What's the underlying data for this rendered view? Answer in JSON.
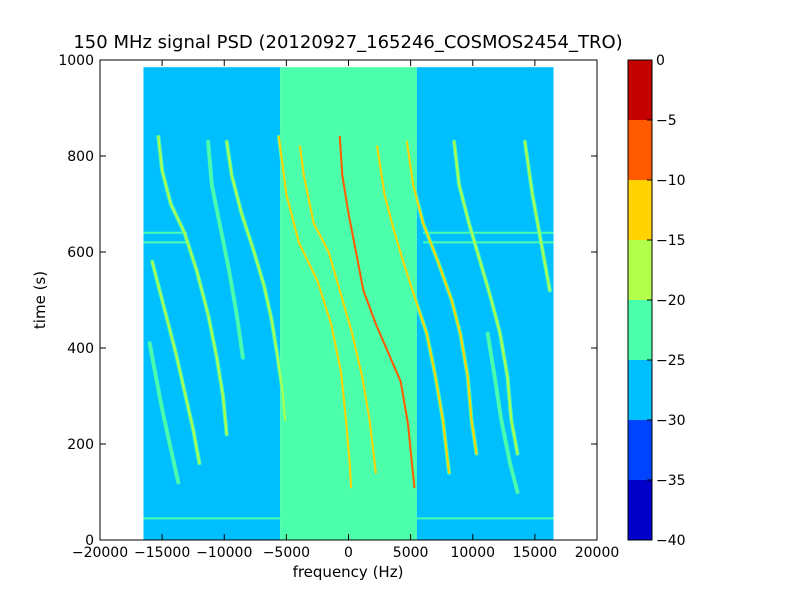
{
  "chart_data": {
    "type": "heatmap",
    "title": "150 MHz signal PSD (20120927_165246_COSMOS2454_TRO)",
    "xlabel": "frequency (Hz)",
    "ylabel": "time (s)",
    "xlim": [
      -20000,
      20000
    ],
    "ylim": [
      0,
      1000
    ],
    "x_ticks": [
      -20000,
      -15000,
      -10000,
      -5000,
      0,
      5000,
      10000,
      15000,
      20000
    ],
    "x_tick_labels": [
      "−20000",
      "−15000",
      "−10000",
      "−5000",
      "0",
      "5000",
      "10000",
      "15000",
      "20000"
    ],
    "y_ticks": [
      0,
      200,
      400,
      600,
      800,
      1000
    ],
    "y_tick_labels": [
      "0",
      "200",
      "400",
      "600",
      "800",
      "1000"
    ],
    "data_extent": {
      "x": [
        -16500,
        16500
      ],
      "y": [
        0,
        985
      ]
    },
    "background_bands": [
      {
        "x": [
          -16500,
          -5500
        ],
        "level": -27
      },
      {
        "x": [
          -5500,
          5500
        ],
        "level": -22
      },
      {
        "x": [
          5500,
          16500
        ],
        "level": -27
      }
    ],
    "horizontal_bands": [
      {
        "y": 640,
        "x": [
          -16500,
          -13000
        ],
        "level": -22
      },
      {
        "y": 620,
        "x": [
          -16500,
          -13000
        ],
        "level": -22
      },
      {
        "y": 640,
        "x": [
          6000,
          16500
        ],
        "level": -22
      },
      {
        "y": 620,
        "x": [
          6000,
          16500
        ],
        "level": -22
      },
      {
        "y": 45,
        "x": [
          -16500,
          16500
        ],
        "level": -22
      }
    ],
    "traces": [
      {
        "name": "",
        "level": -7,
        "points": [
          [
            -700,
            840
          ],
          [
            -500,
            760
          ],
          [
            0,
            680
          ],
          [
            600,
            600
          ],
          [
            1200,
            520
          ],
          [
            2200,
            450
          ],
          [
            3200,
            390
          ],
          [
            4200,
            330
          ],
          [
            4800,
            240
          ],
          [
            5100,
            160
          ],
          [
            5300,
            110
          ]
        ]
      },
      {
        "name": "",
        "level": -12,
        "points": [
          [
            -5600,
            840
          ],
          [
            -5000,
            720
          ],
          [
            -4000,
            620
          ],
          [
            -2500,
            540
          ],
          [
            -1400,
            450
          ],
          [
            -600,
            350
          ],
          [
            -200,
            250
          ],
          [
            100,
            160
          ],
          [
            200,
            110
          ]
        ]
      },
      {
        "name": "",
        "level": -12,
        "points": [
          [
            -3900,
            820
          ],
          [
            -3600,
            760
          ],
          [
            -2800,
            660
          ],
          [
            -1600,
            600
          ],
          [
            -700,
            520
          ],
          [
            300,
            430
          ],
          [
            1100,
            340
          ],
          [
            1700,
            250
          ],
          [
            2200,
            140
          ]
        ]
      },
      {
        "name": "",
        "level": -12,
        "points": [
          [
            2300,
            820
          ],
          [
            2900,
            720
          ],
          [
            3600,
            650
          ],
          [
            4400,
            580
          ],
          [
            5400,
            500
          ],
          [
            6300,
            430
          ],
          [
            7000,
            340
          ],
          [
            7600,
            250
          ],
          [
            8100,
            140
          ]
        ]
      },
      {
        "name": "",
        "level": -14,
        "points": [
          [
            4700,
            830
          ],
          [
            5200,
            740
          ],
          [
            6000,
            660
          ],
          [
            7200,
            580
          ],
          [
            8300,
            500
          ],
          [
            9000,
            430
          ],
          [
            9600,
            340
          ],
          [
            9900,
            250
          ],
          [
            10300,
            180
          ]
        ]
      },
      {
        "name": "",
        "level": -17,
        "points": [
          [
            8500,
            830
          ],
          [
            8900,
            740
          ],
          [
            9700,
            660
          ],
          [
            10600,
            580
          ],
          [
            11500,
            500
          ],
          [
            12200,
            430
          ],
          [
            12800,
            340
          ],
          [
            13100,
            250
          ],
          [
            13600,
            180
          ]
        ]
      },
      {
        "name": "",
        "level": -17,
        "points": [
          [
            14200,
            830
          ],
          [
            14800,
            720
          ],
          [
            15500,
            620
          ],
          [
            16200,
            520
          ]
        ]
      },
      {
        "name": "",
        "level": -20,
        "points": [
          [
            -15300,
            840
          ],
          [
            -15000,
            770
          ],
          [
            -14300,
            700
          ],
          [
            -13200,
            640
          ],
          [
            -12200,
            560
          ],
          [
            -11300,
            470
          ],
          [
            -10600,
            380
          ],
          [
            -10100,
            300
          ],
          [
            -9800,
            220
          ]
        ]
      },
      {
        "name": "",
        "level": -20,
        "points": [
          [
            -9800,
            830
          ],
          [
            -9400,
            760
          ],
          [
            -8600,
            680
          ],
          [
            -7600,
            600
          ],
          [
            -6800,
            530
          ],
          [
            -6200,
            460
          ],
          [
            -5700,
            380
          ],
          [
            -5300,
            310
          ],
          [
            -5100,
            250
          ]
        ]
      },
      {
        "name": "",
        "level": -20,
        "points": [
          [
            -15800,
            580
          ],
          [
            -15300,
            530
          ],
          [
            -14600,
            460
          ],
          [
            -13900,
            390
          ],
          [
            -13200,
            310
          ],
          [
            -12500,
            230
          ],
          [
            -12000,
            160
          ]
        ]
      },
      {
        "name": "",
        "level": -22,
        "points": [
          [
            -16000,
            410
          ],
          [
            -15500,
            340
          ],
          [
            -14900,
            260
          ],
          [
            -14300,
            190
          ],
          [
            -13700,
            120
          ]
        ]
      },
      {
        "name": "",
        "level": -22,
        "points": [
          [
            -11300,
            830
          ],
          [
            -11000,
            740
          ],
          [
            -10300,
            650
          ],
          [
            -9600,
            560
          ],
          [
            -9000,
            470
          ],
          [
            -8500,
            380
          ]
        ]
      },
      {
        "name": "",
        "level": -22,
        "points": [
          [
            11200,
            430
          ],
          [
            11700,
            350
          ],
          [
            12300,
            250
          ],
          [
            13000,
            160
          ],
          [
            13600,
            100
          ]
        ]
      }
    ],
    "colorbar": {
      "levels": [
        -40,
        -35,
        -30,
        -25,
        -20,
        -15,
        -10,
        -5,
        0
      ],
      "tick_labels": [
        "−40",
        "−35",
        "−30",
        "−25",
        "−20",
        "−15",
        "−10",
        "−5",
        "0"
      ],
      "colors": [
        "#0000c8",
        "#0044ff",
        "#00bfff",
        "#4cffab",
        "#b2ff4c",
        "#ffd200",
        "#ff5a00",
        "#c40000"
      ]
    },
    "grid": false,
    "colormap": "jet"
  }
}
